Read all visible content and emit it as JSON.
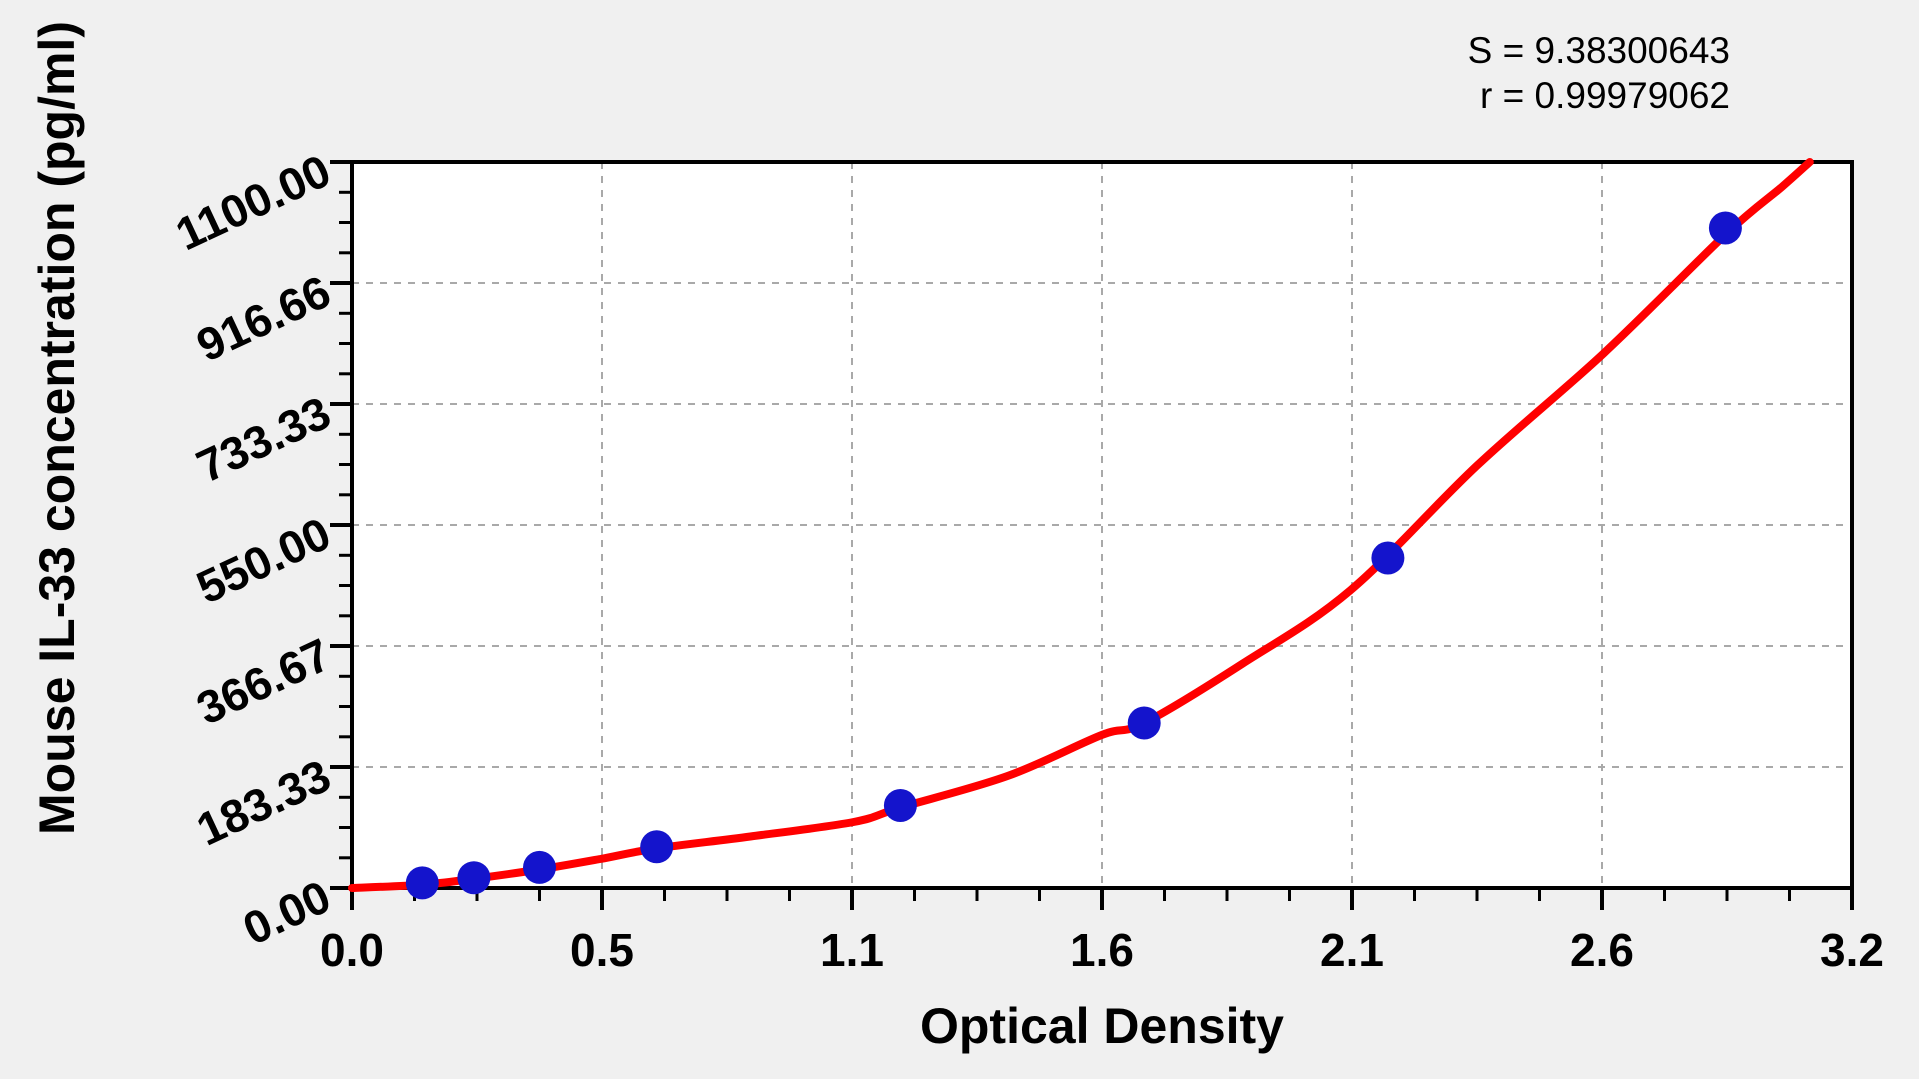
{
  "stats": {
    "s_line": "S = 9.38300643",
    "r_line": "r = 0.99979062"
  },
  "chart_data": {
    "type": "scatter",
    "title": "",
    "xlabel": "Optical Density",
    "ylabel": "Mouse IL-33 concentration (pg/ml)",
    "xlim": [
      0,
      3.2
    ],
    "ylim": [
      0,
      1100
    ],
    "x_tick_labels": [
      "0.0",
      "0.5",
      "1.1",
      "1.6",
      "2.1",
      "2.6",
      "3.2"
    ],
    "y_tick_labels": [
      "0.00",
      "183.33",
      "366.67",
      "550.00",
      "733.33",
      "916.66",
      "1100.00"
    ],
    "x_minor_divisions_per_major": 4,
    "y_minor_divisions_per_major": 4,
    "grid": "dashed gray lines at interior major ticks, plot area boxed in black",
    "legend_position": "none",
    "points": [
      {
        "od": 0.15,
        "conc": 7.8
      },
      {
        "od": 0.26,
        "conc": 15.6
      },
      {
        "od": 0.4,
        "conc": 31.2
      },
      {
        "od": 0.65,
        "conc": 62.5
      },
      {
        "od": 1.17,
        "conc": 125
      },
      {
        "od": 1.69,
        "conc": 250
      },
      {
        "od": 2.21,
        "conc": 500
      },
      {
        "od": 2.93,
        "conc": 1000
      }
    ],
    "fit_curve_samples": [
      [
        0,
        0
      ],
      [
        0.15,
        5
      ],
      [
        0.26,
        14
      ],
      [
        0.4,
        28
      ],
      [
        0.53,
        44
      ],
      [
        0.65,
        60
      ],
      [
        0.85,
        78
      ],
      [
        1.07,
        100
      ],
      [
        1.17,
        122
      ],
      [
        1.4,
        170
      ],
      [
        1.6,
        232
      ],
      [
        1.69,
        250
      ],
      [
        1.9,
        340
      ],
      [
        2.13,
        451
      ],
      [
        2.4,
        640
      ],
      [
        2.67,
        810
      ],
      [
        2.93,
        990
      ],
      [
        3.05,
        1062
      ],
      [
        3.11,
        1100
      ]
    ],
    "colors": {
      "curve": "#ff0000",
      "points": "#1414cc",
      "grid": "#a9a9a9",
      "axis": "#000000",
      "plot_background": "#ffffff",
      "page_background": "#f0f0f0"
    }
  }
}
